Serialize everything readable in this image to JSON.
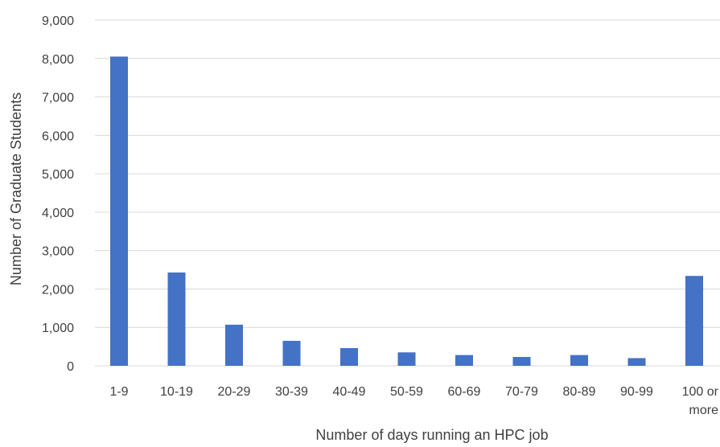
{
  "chart_data": {
    "type": "bar",
    "title": "",
    "xlabel": "Number of days running an HPC job",
    "ylabel": "Number of Graduate Students",
    "categories": [
      "1-9",
      "10-19",
      "20-29",
      "30-39",
      "40-49",
      "50-59",
      "60-69",
      "70-79",
      "80-89",
      "90-99",
      "100 or more"
    ],
    "values": [
      8050,
      2430,
      1070,
      650,
      460,
      350,
      280,
      230,
      280,
      200,
      2340
    ],
    "ylim": [
      0,
      9000
    ],
    "yticks": [
      "0",
      "1,000",
      "2,000",
      "3,000",
      "4,000",
      "5,000",
      "6,000",
      "7,000",
      "8,000",
      "9,000"
    ],
    "grid": true,
    "bar_color": "#4472C4",
    "grid_color": "#d9d9d9"
  }
}
